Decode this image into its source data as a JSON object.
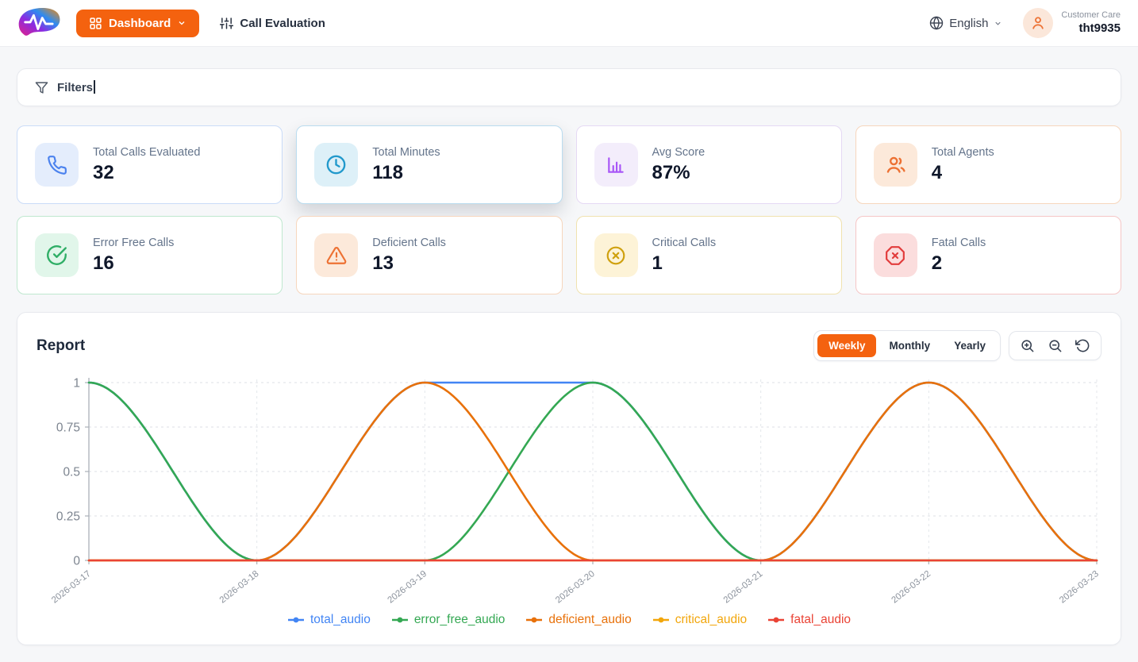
{
  "header": {
    "brand_icon": "voice-wave-logo",
    "dashboard_button": {
      "label": "Dashboard",
      "icon": "grid-icon",
      "chevron": "chevron-down-icon"
    },
    "nav": [
      {
        "label": "Call Evaluation",
        "icon": "sliders-icon"
      }
    ],
    "language": {
      "label": "English",
      "icon": "globe-icon",
      "chevron": "chevron-down-icon"
    },
    "user": {
      "role": "Customer Care",
      "name": "tht9935",
      "icon": "person-icon"
    }
  },
  "filters": {
    "label": "Filters",
    "icon": "funnel-icon"
  },
  "stats": {
    "items": [
      {
        "label": "Total Calls Evaluated",
        "value": "32",
        "icon": "phone-icon",
        "color": "#4b82ee"
      },
      {
        "label": "Total Minutes",
        "value": "118",
        "icon": "clock-icon",
        "color": "#2199cc"
      },
      {
        "label": "Avg Score",
        "value": "87%",
        "icon": "bar-chart-icon",
        "color": "#a855f7"
      },
      {
        "label": "Total Agents",
        "value": "4",
        "icon": "users-icon",
        "color": "#ed7133"
      },
      {
        "label": "Error Free Calls",
        "value": "16",
        "icon": "check-circle-icon",
        "color": "#2fae66"
      },
      {
        "label": "Deficient Calls",
        "value": "13",
        "icon": "alert-triangle-icon",
        "color": "#ed7133"
      },
      {
        "label": "Critical Calls",
        "value": "1",
        "icon": "x-circle-icon",
        "color": "#cfa00d"
      },
      {
        "label": "Fatal Calls",
        "value": "2",
        "icon": "x-octagon-icon",
        "color": "#e23b3b"
      }
    ]
  },
  "report": {
    "title": "Report",
    "tabs": [
      {
        "label": "Weekly"
      },
      {
        "label": "Monthly"
      },
      {
        "label": "Yearly"
      }
    ],
    "active_tab": "Weekly",
    "accent_color": "#f4620f",
    "zoom_controls": [
      "zoom-in-icon",
      "zoom-out-icon",
      "reset-icon"
    ],
    "chart_data": {
      "type": "line",
      "x": [
        "2026-03-17",
        "2026-03-18",
        "2026-03-19",
        "2026-03-20",
        "2026-03-21",
        "2026-03-22",
        "2026-03-23"
      ],
      "series": [
        {
          "name": "total_audio",
          "color": "#4285F4",
          "values": [
            1,
            0,
            1,
            1,
            0,
            1,
            0
          ]
        },
        {
          "name": "error_free_audio",
          "color": "#34A853",
          "values": [
            1,
            0,
            0,
            1,
            0,
            0,
            0
          ]
        },
        {
          "name": "deficient_audio",
          "color": "#E8710A",
          "values": [
            0,
            0,
            1,
            0,
            0,
            1,
            0
          ]
        },
        {
          "name": "critical_audio",
          "color": "#F2A60B",
          "values": [
            0,
            0,
            0,
            0,
            0,
            0,
            0
          ]
        },
        {
          "name": "fatal_audio",
          "color": "#EA4335",
          "values": [
            0,
            0,
            0,
            0,
            0,
            0,
            0
          ]
        }
      ],
      "yticks": [
        "0",
        "0.25",
        "0.5",
        "0.75",
        "1"
      ],
      "ylim": [
        0,
        1
      ],
      "interpolation": "smooth ease between daily points; total_audio = error_free + deficient, flat at 1 between 2026-03-19 and 2026-03-20",
      "grid": "dashed horizontal and vertical gridlines",
      "legend_position": "bottom"
    }
  }
}
